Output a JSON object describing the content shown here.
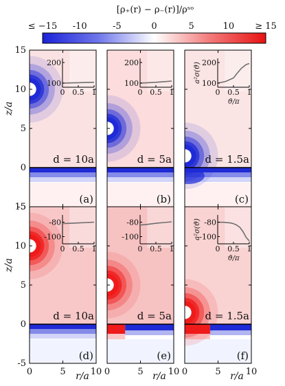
{
  "colors": {
    "negative": "#1f2bd6",
    "positive": "#ef1a1a",
    "neutral": "#ffffff",
    "curve": "#6e6e6e"
  },
  "colorbar": {
    "title": "[ρ₊(r) − ρ₋(r)]/ρˢᵒ",
    "ticks": [
      "≤ −15",
      "-10",
      "-5",
      "0",
      "5",
      "10",
      "≥ 15"
    ],
    "tick_values": [
      -15,
      -10,
      -5,
      0,
      5,
      10,
      15
    ]
  },
  "axes": {
    "xlabel": "r/a",
    "ylabel": "z/a",
    "x_ticks": [
      "0",
      "5",
      "10"
    ],
    "y_ticks": [
      "15",
      "10",
      "5",
      "0",
      "-5"
    ]
  },
  "panels": [
    {
      "label": "(a)",
      "d_label": "d = 10a",
      "d": 10,
      "sphere_sign": "negative",
      "wall_split_r": null
    },
    {
      "label": "(b)",
      "d_label": "d = 5a",
      "d": 5,
      "sphere_sign": "negative",
      "wall_split_r": null
    },
    {
      "label": "(c)",
      "d_label": "d = 1.5a",
      "d": 1.5,
      "sphere_sign": "negative",
      "wall_split_r": null
    },
    {
      "label": "(d)",
      "d_label": "d = 10a",
      "d": 10,
      "sphere_sign": "positive",
      "wall_split_r": null
    },
    {
      "label": "(e)",
      "d_label": "d = 5a",
      "d": 5,
      "sphere_sign": "positive",
      "wall_split_r": 2.7
    },
    {
      "label": "(f)",
      "d_label": "d = 1.5a",
      "d": 1.5,
      "sphere_sign": "positive",
      "wall_split_r": 3.8
    }
  ],
  "insets": {
    "xlabel": "ϑ/π",
    "ylabel": "a²σ(ϑ)",
    "x_ticks": [
      "0",
      "0.5",
      "1"
    ],
    "top_y_ticks": [
      "200",
      "100"
    ],
    "bottom_y_ticks": [
      "-80",
      "-100"
    ]
  },
  "chart_data": [
    {
      "type": "line",
      "panel": "(a)",
      "x": [
        0,
        0.25,
        0.5,
        0.75,
        1
      ],
      "y": [
        100,
        101,
        102,
        103,
        104
      ],
      "ylim": [
        80,
        220
      ]
    },
    {
      "type": "line",
      "panel": "(b)",
      "x": [
        0,
        0.25,
        0.5,
        0.75,
        1
      ],
      "y": [
        100,
        102,
        104,
        107,
        110
      ],
      "ylim": [
        80,
        220
      ]
    },
    {
      "type": "line",
      "panel": "(c)",
      "x": [
        0,
        0.25,
        0.5,
        0.6,
        0.75,
        0.9,
        1
      ],
      "y": [
        100,
        108,
        125,
        145,
        172,
        190,
        195
      ],
      "ylim": [
        80,
        220
      ]
    },
    {
      "type": "line",
      "panel": "(d)",
      "x": [
        0,
        0.25,
        0.5,
        0.75,
        1
      ],
      "y": [
        -82,
        -81.5,
        -81,
        -80.5,
        -80
      ],
      "ylim": [
        -110,
        -70
      ]
    },
    {
      "type": "line",
      "panel": "(e)",
      "x": [
        0,
        0.25,
        0.5,
        0.75,
        1
      ],
      "y": [
        -84,
        -83,
        -81.5,
        -80.5,
        -79.5
      ],
      "ylim": [
        -110,
        -70
      ]
    },
    {
      "type": "line",
      "panel": "(f)",
      "x": [
        0,
        0.2,
        0.4,
        0.5,
        0.6,
        0.7,
        0.8,
        0.9,
        1
      ],
      "y": [
        -80,
        -80.2,
        -81,
        -82,
        -84,
        -87,
        -93,
        -101,
        -106
      ],
      "ylim": [
        -110,
        -70
      ]
    }
  ]
}
